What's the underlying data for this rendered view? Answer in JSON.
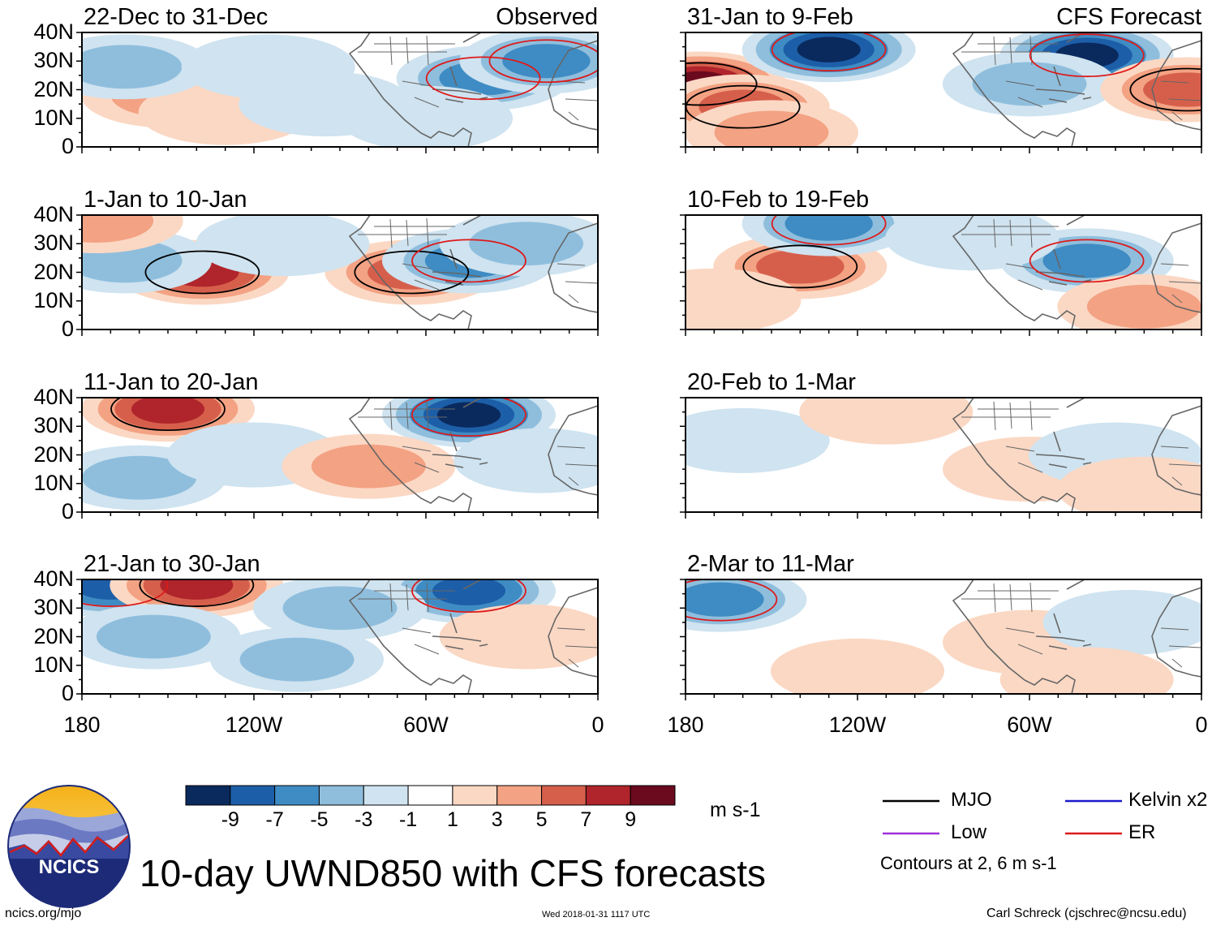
{
  "title": "10-day UWND850 with CFS forecasts",
  "units": "m s-1",
  "contour_note": "Contours at 2, 6 m s-1",
  "footer": {
    "left": "ncics.org/mjo",
    "center": "Wed 2018-01-31 1117 UTC",
    "right": "Carl Schreck (cjschrec@ncsu.edu)"
  },
  "logo": {
    "text": "NCICS"
  },
  "columns": {
    "left_tag": "Observed",
    "right_tag": "CFS Forecast"
  },
  "axes": {
    "y_ticks": [
      "40N",
      "30N",
      "20N",
      "10N",
      "0"
    ],
    "x_ticks": [
      "180",
      "120W",
      "60W",
      "0"
    ]
  },
  "colorbar": {
    "labels": [
      "-9",
      "-7",
      "-5",
      "-3",
      "-1",
      "1",
      "3",
      "5",
      "7",
      "9"
    ],
    "colors": [
      "#0a2a5e",
      "#1d5ea8",
      "#3f8cc4",
      "#8fbedd",
      "#cfe3f0",
      "#ffffff",
      "#fbd8c4",
      "#f3a283",
      "#d65f4c",
      "#b0242b",
      "#6b0a1e"
    ]
  },
  "legend": [
    {
      "label": "MJO",
      "color": "#000000"
    },
    {
      "label": "Kelvin x2",
      "color": "#1a1acc"
    },
    {
      "label": "Low",
      "color": "#a030d8"
    },
    {
      "label": "ER",
      "color": "#dd1a1a"
    }
  ],
  "panels": [
    {
      "title": "22-Dec to 31-Dec",
      "tag": "Observed"
    },
    {
      "title": "31-Jan to 9-Feb",
      "tag": "CFS Forecast"
    },
    {
      "title": "1-Jan to 10-Jan",
      "tag": ""
    },
    {
      "title": "10-Feb to 19-Feb",
      "tag": ""
    },
    {
      "title": "11-Jan to 20-Jan",
      "tag": ""
    },
    {
      "title": "20-Feb to 1-Mar",
      "tag": ""
    },
    {
      "title": "21-Jan to 30-Jan",
      "tag": ""
    },
    {
      "title": "2-Mar to 11-Mar",
      "tag": ""
    }
  ],
  "anomalies": [
    [
      {
        "lon": -150,
        "lat": 18,
        "v": 4
      },
      {
        "lon": -130,
        "lat": 12,
        "v": 2
      },
      {
        "lon": -165,
        "lat": 28,
        "v": -3
      },
      {
        "lon": -115,
        "lat": 28,
        "v": -2
      },
      {
        "lon": -40,
        "lat": 24,
        "v": -6
      },
      {
        "lon": -18,
        "lat": 30,
        "v": -5
      },
      {
        "lon": -60,
        "lat": 10,
        "v": -2
      },
      {
        "lon": -95,
        "lat": 15,
        "v": -2
      }
    ],
    [
      {
        "lon": -175,
        "lat": 22,
        "v": 9
      },
      {
        "lon": -160,
        "lat": 14,
        "v": 6
      },
      {
        "lon": -130,
        "lat": 34,
        "v": -9
      },
      {
        "lon": -40,
        "lat": 32,
        "v": -9
      },
      {
        "lon": -60,
        "lat": 22,
        "v": -3
      },
      {
        "lon": -5,
        "lat": 20,
        "v": 5
      },
      {
        "lon": -150,
        "lat": 5,
        "v": 3
      }
    ],
    [
      {
        "lon": -138,
        "lat": 20,
        "v": 7
      },
      {
        "lon": -165,
        "lat": 24,
        "v": -4
      },
      {
        "lon": -65,
        "lat": 20,
        "v": 5
      },
      {
        "lon": -45,
        "lat": 24,
        "v": -5
      },
      {
        "lon": -25,
        "lat": 30,
        "v": -4
      },
      {
        "lon": -175,
        "lat": 38,
        "v": 3
      },
      {
        "lon": -110,
        "lat": 30,
        "v": -2
      }
    ],
    [
      {
        "lon": -140,
        "lat": 22,
        "v": 6
      },
      {
        "lon": -130,
        "lat": 37,
        "v": -6
      },
      {
        "lon": -40,
        "lat": 24,
        "v": -6
      },
      {
        "lon": -20,
        "lat": 8,
        "v": 3
      },
      {
        "lon": -80,
        "lat": 32,
        "v": -2
      },
      {
        "lon": -170,
        "lat": 10,
        "v": 2
      }
    ],
    [
      {
        "lon": -150,
        "lat": 36,
        "v": 8
      },
      {
        "lon": -45,
        "lat": 34,
        "v": -9
      },
      {
        "lon": -160,
        "lat": 12,
        "v": -4
      },
      {
        "lon": -120,
        "lat": 20,
        "v": -2
      },
      {
        "lon": -80,
        "lat": 16,
        "v": 3
      },
      {
        "lon": -20,
        "lat": 18,
        "v": -2
      }
    ],
    [
      {
        "lon": -60,
        "lat": 15,
        "v": 2
      },
      {
        "lon": -30,
        "lat": 20,
        "v": -2
      },
      {
        "lon": -20,
        "lat": 8,
        "v": 2
      },
      {
        "lon": -160,
        "lat": 25,
        "v": -1
      },
      {
        "lon": -110,
        "lat": 35,
        "v": 1
      }
    ],
    [
      {
        "lon": -170,
        "lat": 38,
        "v": -7
      },
      {
        "lon": -140,
        "lat": 38,
        "v": 7
      },
      {
        "lon": -45,
        "lat": 36,
        "v": -7
      },
      {
        "lon": -90,
        "lat": 30,
        "v": -4
      },
      {
        "lon": -155,
        "lat": 20,
        "v": -3
      },
      {
        "lon": -105,
        "lat": 12,
        "v": -3
      },
      {
        "lon": -25,
        "lat": 20,
        "v": 2
      }
    ],
    [
      {
        "lon": -168,
        "lat": 33,
        "v": -5
      },
      {
        "lon": -60,
        "lat": 18,
        "v": 1
      },
      {
        "lon": -25,
        "lat": 25,
        "v": -1
      },
      {
        "lon": -40,
        "lat": 5,
        "v": 2
      },
      {
        "lon": -120,
        "lat": 8,
        "v": 1
      }
    ]
  ]
}
